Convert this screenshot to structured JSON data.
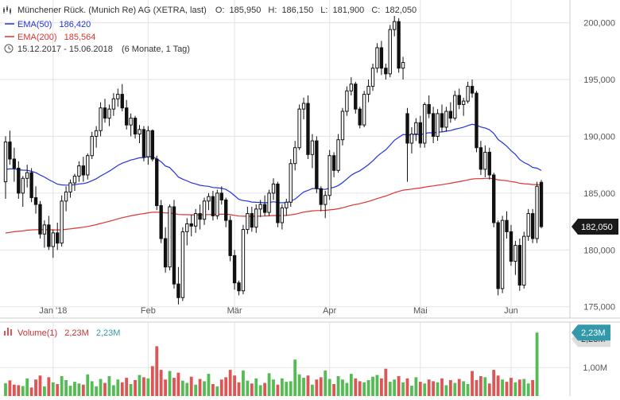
{
  "chart_data": [
    {
      "type": "candlestick",
      "header": {
        "title": "Münchener Rück. (Munich Re) AG (XETRA, last)",
        "ohlc_labels": [
          "O:",
          "H:",
          "L:",
          "C:"
        ],
        "ohlc_values": [
          "185,950",
          "186,150",
          "181,900",
          "182,050"
        ],
        "legend": [
          {
            "label": "EMA(50)",
            "value": "186,420",
            "color": "#2233dd"
          },
          {
            "label": "EMA(200)",
            "value": "185,564",
            "color": "#dd3333"
          }
        ],
        "range": "15.12.2017 - 15.06.2018",
        "range_note": "(6 Monate, 1 Tag)"
      },
      "y_ticks": [
        {
          "value": 175000,
          "label": "175,000"
        },
        {
          "value": 180000,
          "label": "180,000"
        },
        {
          "value": 185000,
          "label": "185,000"
        },
        {
          "value": 190000,
          "label": "190,000"
        },
        {
          "value": 195000,
          "label": "195,000"
        },
        {
          "value": 200000,
          "label": "200,000"
        }
      ],
      "ylim": [
        174000,
        202000
      ],
      "x_ticks": [
        {
          "index": 11,
          "label": "Jan '18"
        },
        {
          "index": 33,
          "label": "Feb"
        },
        {
          "index": 53,
          "label": "Mär"
        },
        {
          "index": 75,
          "label": "Apr"
        },
        {
          "index": 96,
          "label": "Mai"
        },
        {
          "index": 117,
          "label": "Jun"
        }
      ],
      "last_price": {
        "value": 182050,
        "label": "182,050"
      },
      "candles": [
        [
          186.0,
          190.0,
          184.5,
          189.5
        ],
        [
          189.5,
          190.5,
          187.5,
          188.0
        ],
        [
          188.0,
          189.0,
          186.0,
          187.2
        ],
        [
          187.2,
          187.8,
          184.5,
          185.0
        ],
        [
          185.0,
          186.5,
          183.8,
          186.3
        ],
        [
          186.3,
          187.5,
          185.5,
          186.8
        ],
        [
          186.8,
          187.2,
          184.2,
          184.6
        ],
        [
          184.6,
          185.6,
          183.2,
          184.0
        ],
        [
          184.0,
          184.3,
          181.0,
          181.4
        ],
        [
          181.4,
          182.6,
          180.2,
          182.2
        ],
        [
          182.2,
          183.0,
          180.0,
          180.3
        ],
        [
          180.3,
          181.8,
          179.3,
          181.5
        ],
        [
          181.5,
          182.4,
          180.0,
          180.6
        ],
        [
          180.6,
          184.8,
          180.3,
          184.3
        ],
        [
          184.3,
          185.6,
          183.4,
          185.1
        ],
        [
          185.1,
          186.2,
          184.6,
          185.9
        ],
        [
          185.9,
          186.7,
          185.2,
          186.5
        ],
        [
          186.5,
          187.8,
          186.0,
          187.4
        ],
        [
          187.4,
          188.2,
          186.0,
          186.6
        ],
        [
          186.6,
          188.5,
          186.2,
          188.3
        ],
        [
          188.3,
          190.4,
          188.0,
          190.0
        ],
        [
          190.0,
          190.9,
          189.0,
          190.5
        ],
        [
          190.5,
          193.0,
          190.0,
          192.5
        ],
        [
          192.5,
          193.3,
          191.2,
          191.6
        ],
        [
          191.6,
          192.8,
          190.9,
          192.4
        ],
        [
          192.4,
          193.8,
          191.8,
          193.3
        ],
        [
          193.3,
          194.2,
          192.6,
          193.7
        ],
        [
          193.7,
          194.6,
          192.2,
          192.5
        ],
        [
          192.5,
          193.2,
          190.6,
          191.0
        ],
        [
          191.0,
          192.0,
          190.0,
          191.6
        ],
        [
          191.6,
          191.8,
          189.8,
          190.2
        ],
        [
          190.2,
          191.0,
          189.4,
          190.6
        ],
        [
          190.6,
          190.9,
          187.8,
          188.2
        ],
        [
          188.2,
          190.9,
          187.5,
          190.5
        ],
        [
          190.5,
          190.6,
          187.8,
          188.0
        ],
        [
          188.0,
          188.3,
          183.5,
          183.9
        ],
        [
          183.9,
          184.4,
          180.6,
          181.0
        ],
        [
          181.0,
          182.0,
          178.0,
          178.5
        ],
        [
          178.5,
          184.0,
          178.2,
          183.8
        ],
        [
          183.8,
          184.4,
          176.6,
          177.0
        ],
        [
          177.0,
          178.5,
          175.2,
          175.8
        ],
        [
          175.8,
          182.0,
          175.5,
          181.6
        ],
        [
          181.6,
          182.8,
          180.4,
          182.3
        ],
        [
          182.3,
          183.1,
          181.2,
          182.1
        ],
        [
          182.1,
          183.6,
          181.5,
          183.2
        ],
        [
          183.2,
          184.0,
          181.8,
          182.7
        ],
        [
          182.7,
          184.6,
          182.2,
          184.3
        ],
        [
          184.3,
          185.0,
          183.5,
          184.7
        ],
        [
          184.7,
          185.2,
          182.6,
          183.0
        ],
        [
          183.0,
          185.3,
          182.7,
          185.0
        ],
        [
          185.0,
          185.6,
          184.0,
          184.4
        ],
        [
          184.4,
          184.6,
          182.0,
          182.6
        ],
        [
          182.6,
          183.0,
          179.0,
          179.5
        ],
        [
          179.5,
          180.0,
          176.5,
          177.1
        ],
        [
          177.1,
          177.3,
          176.0,
          176.4
        ],
        [
          176.4,
          182.2,
          176.1,
          181.8
        ],
        [
          181.8,
          183.8,
          181.4,
          183.2
        ],
        [
          183.2,
          183.8,
          181.6,
          182.0
        ],
        [
          182.0,
          184.0,
          181.5,
          183.6
        ],
        [
          183.6,
          184.4,
          182.9,
          184.0
        ],
        [
          184.0,
          184.8,
          183.0,
          183.3
        ],
        [
          183.3,
          185.3,
          183.0,
          185.0
        ],
        [
          185.0,
          186.3,
          184.4,
          185.8
        ],
        [
          185.8,
          186.0,
          182.0,
          182.4
        ],
        [
          182.4,
          184.0,
          181.8,
          183.7
        ],
        [
          183.7,
          184.5,
          183.0,
          184.2
        ],
        [
          184.2,
          188.0,
          183.8,
          187.6
        ],
        [
          187.6,
          189.6,
          187.0,
          189.0
        ],
        [
          189.0,
          192.8,
          188.8,
          192.4
        ],
        [
          192.4,
          193.4,
          191.5,
          192.9
        ],
        [
          192.9,
          193.6,
          188.0,
          188.4
        ],
        [
          188.4,
          190.2,
          187.2,
          189.6
        ],
        [
          189.6,
          190.0,
          185.0,
          185.4
        ],
        [
          185.4,
          185.6,
          183.4,
          184.0
        ],
        [
          184.0,
          185.2,
          182.8,
          184.8
        ],
        [
          184.8,
          188.8,
          184.4,
          188.3
        ],
        [
          188.3,
          188.6,
          186.4,
          187.0
        ],
        [
          187.0,
          190.2,
          186.8,
          189.7
        ],
        [
          189.7,
          192.5,
          189.2,
          192.2
        ],
        [
          192.2,
          194.4,
          191.8,
          194.0
        ],
        [
          194.0,
          195.2,
          193.6,
          194.6
        ],
        [
          194.6,
          194.8,
          192.0,
          192.4
        ],
        [
          192.4,
          192.6,
          190.7,
          191.0
        ],
        [
          191.0,
          194.0,
          190.8,
          193.7
        ],
        [
          193.7,
          195.0,
          193.0,
          194.4
        ],
        [
          194.4,
          196.4,
          194.0,
          196.0
        ],
        [
          196.0,
          198.2,
          195.6,
          197.8
        ],
        [
          197.8,
          198.4,
          195.4,
          196.0
        ],
        [
          196.0,
          196.4,
          195.0,
          195.5
        ],
        [
          195.5,
          199.8,
          195.2,
          199.4
        ],
        [
          199.4,
          200.6,
          198.8,
          200.1
        ],
        [
          200.1,
          200.4,
          195.6,
          196.0
        ],
        [
          196.0,
          197.0,
          195.0,
          196.5
        ],
        [
          192.0,
          192.5,
          186.0,
          189.4
        ],
        [
          189.4,
          190.8,
          188.5,
          190.2
        ],
        [
          190.2,
          191.6,
          189.6,
          191.2
        ],
        [
          191.2,
          191.8,
          189.0,
          189.4
        ],
        [
          189.4,
          193.0,
          189.0,
          192.8
        ],
        [
          192.8,
          193.6,
          191.6,
          192.0
        ],
        [
          192.0,
          192.6,
          189.4,
          190.0
        ],
        [
          190.0,
          192.4,
          189.6,
          192.0
        ],
        [
          192.0,
          192.8,
          190.4,
          190.8
        ],
        [
          190.8,
          192.6,
          190.4,
          192.2
        ],
        [
          192.2,
          193.0,
          191.2,
          191.6
        ],
        [
          191.6,
          194.0,
          191.4,
          193.6
        ],
        [
          193.6,
          194.2,
          192.4,
          192.8
        ],
        [
          192.8,
          193.4,
          191.8,
          193.1
        ],
        [
          193.1,
          194.8,
          192.9,
          194.4
        ],
        [
          194.4,
          195.0,
          193.4,
          193.8
        ],
        [
          193.8,
          194.0,
          188.6,
          189.0
        ],
        [
          189.0,
          189.6,
          186.6,
          187.1
        ],
        [
          187.1,
          189.2,
          186.4,
          188.6
        ],
        [
          188.6,
          189.0,
          186.2,
          186.6
        ],
        [
          186.6,
          186.8,
          182.0,
          182.4
        ],
        [
          182.4,
          182.6,
          176.0,
          176.6
        ],
        [
          176.6,
          183.0,
          176.2,
          182.6
        ],
        [
          182.6,
          183.4,
          181.0,
          181.6
        ],
        [
          181.6,
          182.2,
          178.6,
          179.0
        ],
        [
          179.0,
          180.8,
          177.8,
          180.4
        ],
        [
          180.4,
          181.0,
          176.4,
          176.9
        ],
        [
          176.9,
          181.6,
          176.6,
          181.2
        ],
        [
          181.2,
          183.6,
          180.8,
          183.2
        ],
        [
          183.2,
          183.6,
          180.6,
          181.0
        ],
        [
          181.0,
          186.0,
          180.6,
          185.6
        ],
        [
          185.95,
          186.15,
          181.9,
          182.05
        ]
      ],
      "volume": {
        "label": "Volume(1)",
        "last": "2,23M",
        "avg": "2,23M",
        "last_tag": "2,23M",
        "avg_tag": "2,23M",
        "y_ticks": [
          {
            "value": 1.0,
            "label": "1,00M"
          }
        ],
        "ylim": [
          0,
          2.6
        ],
        "values": [
          0.45,
          0.55,
          0.4,
          0.38,
          0.35,
          0.62,
          0.3,
          0.58,
          0.72,
          0.34,
          0.66,
          0.48,
          0.42,
          0.7,
          0.56,
          0.36,
          0.5,
          0.44,
          0.4,
          0.76,
          0.52,
          0.34,
          0.6,
          0.46,
          0.7,
          0.38,
          0.58,
          0.48,
          0.64,
          0.42,
          0.56,
          0.74,
          0.66,
          0.62,
          1.05,
          1.75,
          0.92,
          0.58,
          0.88,
          0.64,
          0.82,
          0.54,
          0.46,
          0.68,
          0.4,
          0.6,
          0.52,
          0.78,
          0.42,
          0.34,
          0.58,
          0.66,
          0.92,
          0.72,
          0.48,
          0.9,
          0.54,
          0.44,
          0.62,
          0.38,
          0.46,
          0.8,
          0.58,
          0.4,
          0.62,
          0.5,
          0.52,
          1.28,
          0.76,
          0.64,
          0.72,
          0.4,
          0.58,
          0.66,
          0.9,
          0.6,
          0.42,
          0.7,
          0.58,
          0.46,
          0.78,
          0.62,
          0.52,
          0.48,
          0.56,
          0.68,
          0.74,
          0.62,
          0.96,
          0.5,
          0.58,
          0.7,
          0.48,
          0.62,
          0.36,
          0.66,
          0.5,
          0.44,
          0.58,
          0.52,
          0.48,
          0.62,
          0.38,
          0.56,
          0.46,
          0.6,
          0.52,
          0.42,
          0.88,
          0.56,
          0.7,
          0.66,
          0.44,
          0.92,
          0.72,
          0.58,
          0.5,
          0.64,
          0.48,
          0.58,
          0.6,
          0.44,
          0.56,
          2.23
        ]
      },
      "colors": {
        "up": "#55bb55",
        "down": "#dd5555",
        "candle": "#111111",
        "ema50": "#2233dd",
        "ema200": "#dd3333",
        "grid": "#e3e3e3",
        "axis_text": "#555555",
        "tag_bg": "#1a1a1a",
        "vol_tag_bg": "#3399aa",
        "vol_label": "#cc3333",
        "vol_avg_label": "#3399aa"
      }
    }
  ]
}
